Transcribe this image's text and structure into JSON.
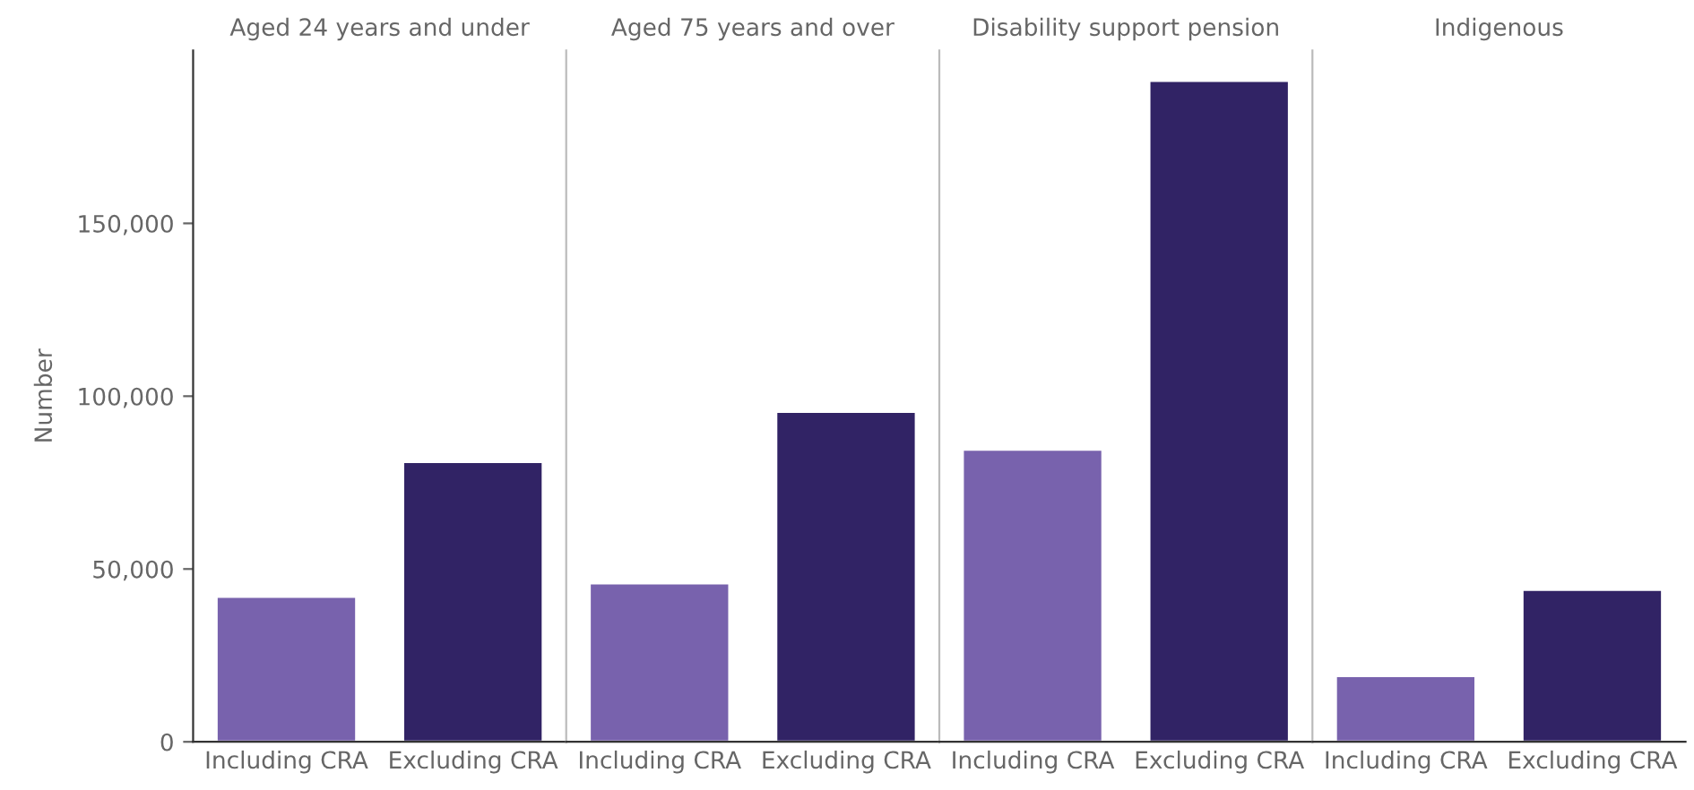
{
  "chart_data": [
    {
      "type": "bar",
      "title": "Aged 24 years and under",
      "ylabel": "Number",
      "categories": [
        "Including CRA",
        "Excluding CRA"
      ],
      "values": [
        42000,
        81000
      ],
      "colors": [
        "#7862ad",
        "#312365"
      ],
      "ylim": [
        0,
        200000
      ],
      "yticks": [
        0,
        {
          "value": 50000,
          "label": "50,000"
        },
        {
          "value": 100000,
          "label": "100,000"
        },
        {
          "value": 150000,
          "label": "150,000"
        }
      ],
      "grid": false,
      "legend": false
    },
    {
      "type": "bar",
      "title": "Aged 75 years and over",
      "categories": [
        "Including CRA",
        "Excluding CRA"
      ],
      "values": [
        45900,
        95500
      ],
      "colors": [
        "#7862ad",
        "#312365"
      ],
      "ylim": [
        0,
        200000
      ],
      "tick_labels": "x",
      "grid": false,
      "legend": false
    },
    {
      "type": "bar",
      "title": "Disability support pension",
      "categories": [
        "Including CRA",
        "Excluding CRA"
      ],
      "values": [
        84600,
        191300
      ],
      "colors": [
        "#7862ad",
        "#312365"
      ],
      "ylim": [
        0,
        200000
      ],
      "tick_labels": "x",
      "grid": false,
      "legend": false
    },
    {
      "type": "bar",
      "title": "Indigenous",
      "categories": [
        "Including CRA",
        "Excluding CRA"
      ],
      "values": [
        19100,
        44000
      ],
      "colors": [
        "#7862ad",
        "#312365"
      ],
      "ylim": [
        0,
        200000
      ],
      "tick_labels": "x",
      "grid": false,
      "legend": false
    }
  ]
}
